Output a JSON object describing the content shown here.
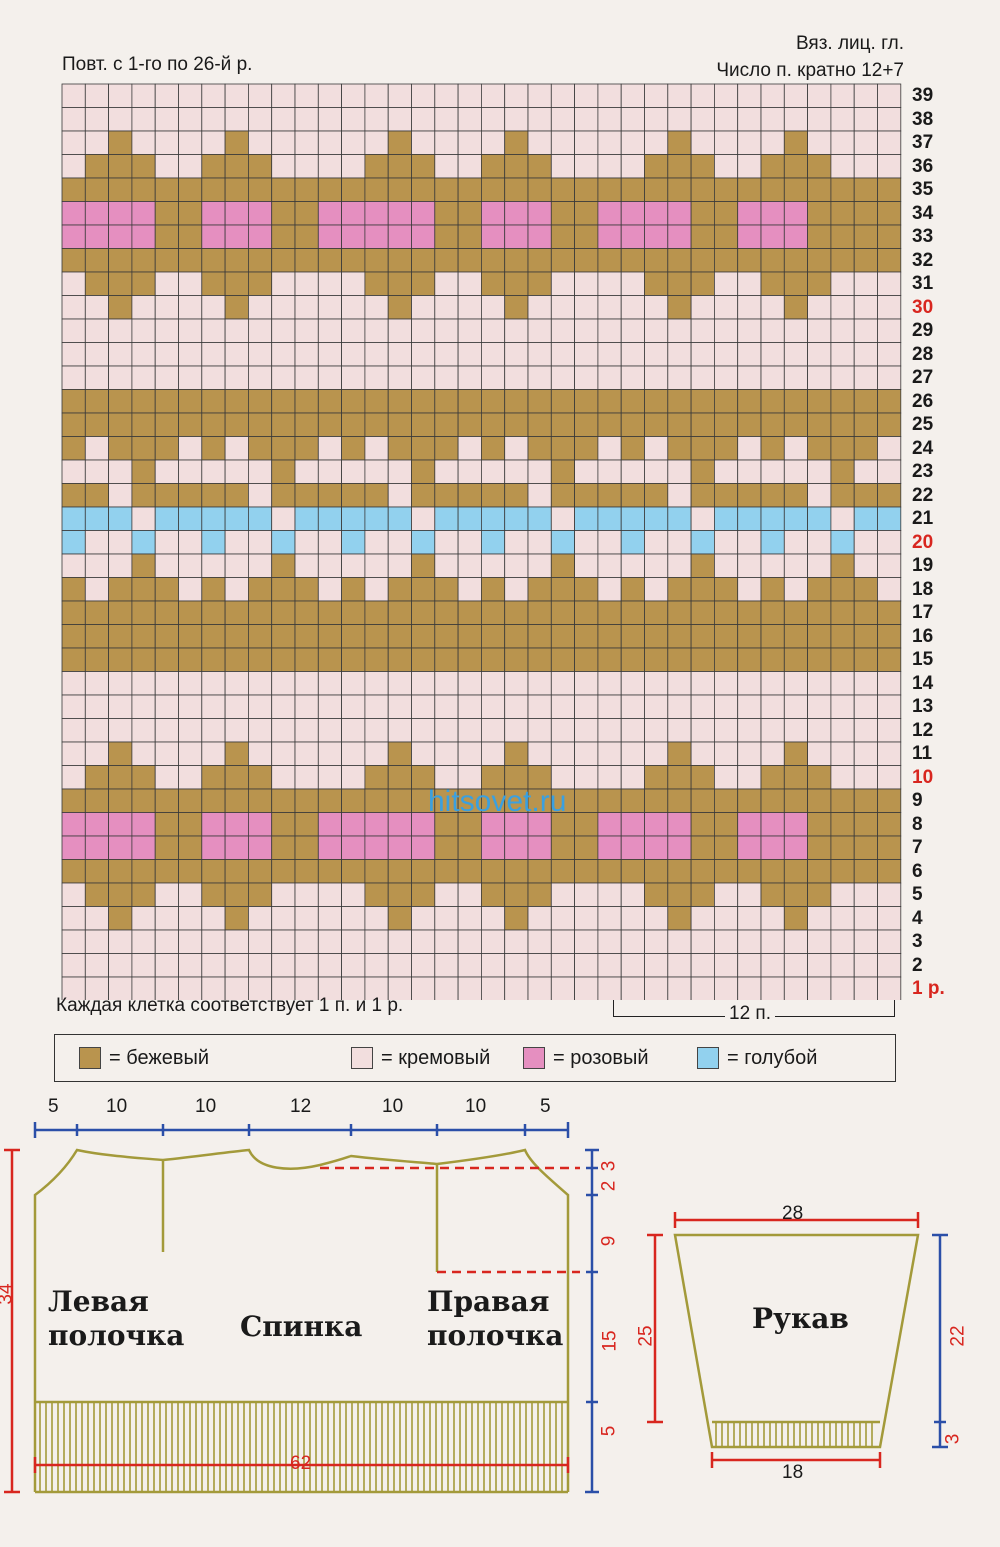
{
  "header": {
    "repeat_note": "Повт. с 1-го по 26-й р.",
    "stitch_note": "Вяз. лиц. гл.",
    "multiple_note": "Число п. кратно 12+7"
  },
  "chart": {
    "columns": 36,
    "colors": {
      "B": "#b9944e",
      "C": "#f2dede",
      "P": "#e58fc0",
      "L": "#92d1ee"
    },
    "row_labels": [
      "39",
      "38",
      "37",
      "36",
      "35",
      "34",
      "33",
      "32",
      "31",
      "30",
      "29",
      "28",
      "27",
      "26",
      "25",
      "24",
      "23",
      "22",
      "21",
      "20",
      "19",
      "18",
      "17",
      "16",
      "15",
      "14",
      "13",
      "12",
      "11",
      "10",
      "9",
      "8",
      "7",
      "6",
      "5",
      "4",
      "3",
      "2",
      "1 р."
    ],
    "red_rows": [
      "30",
      "20",
      "10",
      "1 р."
    ],
    "grid_rows_top_to_bottom": [
      "CCCCCCCCCCCCCCCCCCCCCCCCCCCCCCCCCCCC",
      "CCCCCCCCCCCCCCCCCCCCCCCCCCCCCCCCCCCC",
      "CCBCCCCBCCCCCCBCCCCBCCCCCCBCCCCBCCCC",
      "CBBBCCBBBCCCCBBBCCBBBCCCCBBBCCBBBCCC",
      "BBBBBBBBBBBBBBBBBBBBBBBBBBBBBBBBBBBB",
      "PPPPBBPPPBBPPPPPBBPPPBBPPPPBBPPPBBBB",
      "PPPPBBPPPBBPPPPPBBPPPBBPPPPBBPPPBBBB",
      "BBBBBBBBBBBBBBBBBBBBBBBBBBBBBBBBBBBB",
      "CBBBCCBBBCCCCBBBCCBBBCCCCBBBCCBBBCCC",
      "CCBCCCCBCCCCCCBCCCCBCCCCCCBCCCCBCCCC",
      "CCCCCCCCCCCCCCCCCCCCCCCCCCCCCCCCCCCC",
      "CCCCCCCCCCCCCCCCCCCCCCCCCCCCCCCCCCCC",
      "CCCCCCCCCCCCCCCCCCCCCCCCCCCCCCCCCCCC",
      "BBBBBBBBBBBBBBBBBBBBBBBBBBBBBBBBBBBB",
      "BBBBBBBBBBBBBBBBBBBBBBBBBBBBBBBBBBBB",
      "BCBBBCBCBBBCBCBBBCBCBBBCBCBBBCBCBBBC",
      "CCCBCCCCCBCCCCCBCCCCCBCCCCCBCCCCCBCC",
      "BBCBBBBBCBBBBBCBBBBBCBBBBBCBBBBBCBBB",
      "LLLCLLLLLCLLLLLCLLLLLCLLLLLCLLLLLCLL",
      "LCCLCCLCCLCCLCCLCCLCCLCCLCCLCCLCCLCC",
      "CCCBCCCCCBCCCCCBCCCCCBCCCCCBCCCCCBCC",
      "BCBBBCBCBBBCBCBBBCBCBBBCBCBBBCBCBBBC",
      "BBBBBBBBBBBBBBBBBBBBBBBBBBBBBBBBBBBB",
      "BBBBBBBBBBBBBBBBBBBBBBBBBBBBBBBBBBBB",
      "BBBBBBBBBBBBBBBBBBBBBBBBBBBBBBBBBBBB",
      "CCCCCCCCCCCCCCCCCCCCCCCCCCCCCCCCCCCC",
      "CCCCCCCCCCCCCCCCCCCCCCCCCCCCCCCCCCCC",
      "CCCCCCCCCCCCCCCCCCCCCCCCCCCCCCCCCCCC",
      "CCBCCCCBCCCCCCBCCCCBCCCCCCBCCCCBCCCC",
      "CBBBCCBBBCCCCBBBCCBBBCCCCBBBCCBBBCCC",
      "BBBBBBBBBBBBBBBBBBBBBBBBBBBBBBBBBBBB",
      "PPPPBBPPPBBPPPPPBBPPPBBPPPPBBPPPBBBB",
      "PPPPBBPPPBBPPPPPBBPPPBBPPPPBBPPPBBBB",
      "BBBBBBBBBBBBBBBBBBBBBBBBBBBBBBBBBBBB",
      "CBBBCCBBBCCCCBBBCCBBBCCCCBBBCCBBBCCC",
      "CCBCCCCBCCCCCCBCCCCBCCCCCCBCCCCBCCCC",
      "CCCCCCCCCCCCCCCCCCCCCCCCCCCCCCCCCCCC",
      "CCCCCCCCCCCCCCCCCCCCCCCCCCCCCCCCCCCC",
      "CCCCCCCCCCCCCCCCCCCCCCCCCCCCCCCCCCCC"
    ],
    "cell_note": "Каждая клетка соответствует 1 п. и 1 р.",
    "repeat_label": "12 п."
  },
  "legend": [
    {
      "label": "= бежевый",
      "color": "#b9944e",
      "icon": "swatch-beige"
    },
    {
      "label": "= кремовый",
      "color": "#f2dede",
      "icon": "swatch-cream"
    },
    {
      "label": "= розовый",
      "color": "#e58fc0",
      "icon": "swatch-pink"
    },
    {
      "label": "= голубой",
      "color": "#92d1ee",
      "icon": "swatch-blue"
    }
  ],
  "pattern": {
    "top_dims": [
      "5",
      "10",
      "10",
      "12",
      "10",
      "10",
      "5"
    ],
    "left_height": "34",
    "bottom_width": "62",
    "right_dims": [
      "3",
      "2",
      "9",
      "15",
      "5"
    ],
    "pieces": {
      "left_front": "Левая полочка",
      "back": "Спинка",
      "right_front": "Правая полочка",
      "sleeve": "Рукав"
    },
    "sleeve_top": "28",
    "sleeve_bottom": "18",
    "sleeve_left": "25",
    "sleeve_right_total": "22",
    "sleeve_right_cuff": "3"
  },
  "watermark": "hitsovet.ru"
}
